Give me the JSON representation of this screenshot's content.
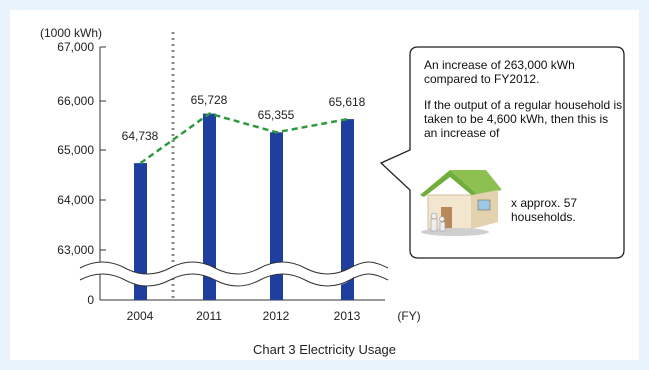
{
  "chart_data": {
    "type": "bar",
    "unit_label": "(1000 kWh)",
    "x_unit": "(FY)",
    "categories": [
      "2004",
      "2011",
      "2012",
      "2013"
    ],
    "values": [
      64738,
      65728,
      65355,
      65618
    ],
    "value_labels": [
      "64,738",
      "65,728",
      "65,355",
      "65,618"
    ],
    "y_ticks": [
      "67,000",
      "66,000",
      "65,000",
      "64,000",
      "63,000",
      "0"
    ],
    "ylim": [
      62000,
      67000
    ],
    "axis_break": true,
    "trend_line": "dashed",
    "colors": {
      "bar": "#1f3f9e",
      "trend": "#2e9a3e",
      "divider": "#888888"
    },
    "caption": "Chart 3  Electricity Usage",
    "annotation": {
      "p1": "An increase of 263,000 kWh compared to FY2012.",
      "p2": "If the output of a regular household is taken to be 4,600 kWh, then this is an increase of",
      "p3": "x approx. 57 households."
    }
  }
}
